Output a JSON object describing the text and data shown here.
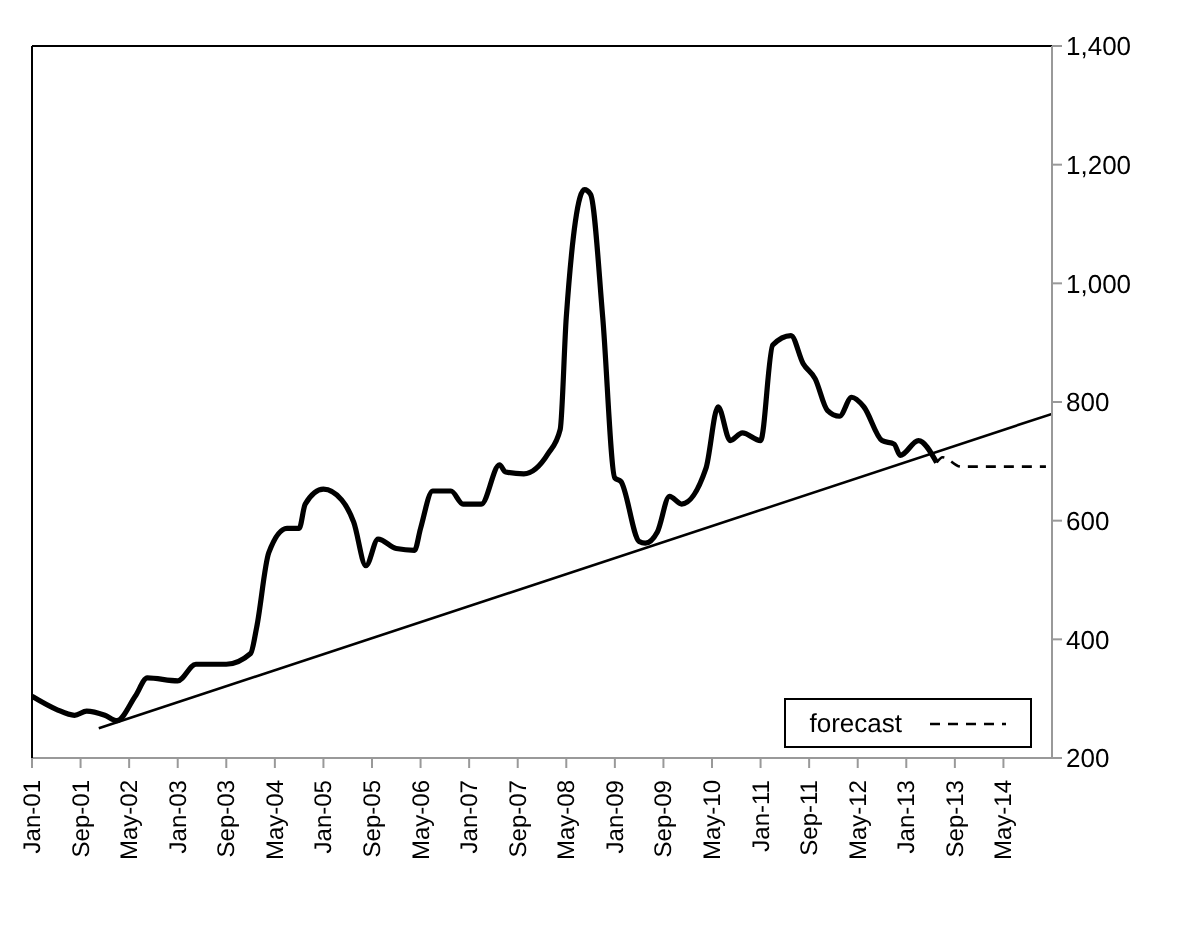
{
  "chart_data": {
    "type": "line",
    "xlim": [
      "2001-01",
      "2015-01"
    ],
    "xticks": [
      {
        "value": "2001-01",
        "label": "Jan-01"
      },
      {
        "value": "2001-09",
        "label": "Sep-01"
      },
      {
        "value": "2002-05",
        "label": "May-02"
      },
      {
        "value": "2003-01",
        "label": "Jan-03"
      },
      {
        "value": "2003-09",
        "label": "Sep-03"
      },
      {
        "value": "2004-05",
        "label": "May-04"
      },
      {
        "value": "2005-01",
        "label": "Jan-05"
      },
      {
        "value": "2005-09",
        "label": "Sep-05"
      },
      {
        "value": "2006-05",
        "label": "May-06"
      },
      {
        "value": "2007-01",
        "label": "Jan-07"
      },
      {
        "value": "2007-09",
        "label": "Sep-07"
      },
      {
        "value": "2008-05",
        "label": "May-08"
      },
      {
        "value": "2009-01",
        "label": "Jan-09"
      },
      {
        "value": "2009-09",
        "label": "Sep-09"
      },
      {
        "value": "2010-05",
        "label": "May-10"
      },
      {
        "value": "2011-01",
        "label": "Jan-11"
      },
      {
        "value": "2011-09",
        "label": "Sep-11"
      },
      {
        "value": "2012-05",
        "label": "May-12"
      },
      {
        "value": "2013-01",
        "label": "Jan-13"
      },
      {
        "value": "2013-09",
        "label": "Sep-13"
      },
      {
        "value": "2014-05",
        "label": "May-14"
      }
    ],
    "ylim": [
      200,
      1400
    ],
    "yticks": [
      200,
      400,
      600,
      800,
      {
        "value": 1000,
        "label": "1,000"
      },
      {
        "value": 1200,
        "label": "1,200"
      },
      {
        "value": 1400,
        "label": "1,400"
      }
    ],
    "legend": "bottom right",
    "marker": "none",
    "series": [
      {
        "color": "#000000",
        "line_style": "solid",
        "x": [
          "2001-01",
          "2001-05",
          "2001-08",
          "2001-10",
          "2002-01",
          "2002-03",
          "2002-06",
          "2002-08",
          "2003-01",
          "2003-04",
          "2003-09",
          "2004-01",
          "2004-02",
          "2004-04",
          "2004-07",
          "2004-09",
          "2004-10",
          "2005-01",
          "2005-04",
          "2005-06",
          "2005-08",
          "2005-10",
          "2006-01",
          "2006-04",
          "2006-05",
          "2006-07",
          "2006-10",
          "2006-12",
          "2007-03",
          "2007-06",
          "2007-07",
          "2007-10",
          "2008-02",
          "2008-04",
          "2008-05",
          "2008-08",
          "2008-09",
          "2008-11",
          "2009-01",
          "2009-02",
          "2009-05",
          "2009-06",
          "2009-08",
          "2009-10",
          "2009-12",
          "2010-04",
          "2010-06",
          "2010-08",
          "2010-10",
          "2011-01",
          "2011-03",
          "2011-06",
          "2011-08",
          "2011-10",
          "2011-12",
          "2012-02",
          "2012-04",
          "2012-06",
          "2012-09",
          "2012-11",
          "2012-12",
          "2013-03",
          "2013-06"
        ],
        "values": [
          304,
          282,
          272,
          279,
          272,
          263,
          304,
          335,
          330,
          358,
          358,
          376,
          420,
          546,
          587,
          587,
          628,
          653,
          635,
          597,
          524,
          569,
          553,
          550,
          587,
          650,
          650,
          628,
          628,
          694,
          682,
          679,
          713,
          754,
          943,
          1158,
          1150,
          943,
          672,
          666,
          565,
          562,
          581,
          641,
          628,
          688,
          792,
          735,
          748,
          735,
          896,
          912,
          865,
          839,
          786,
          776,
          808,
          792,
          735,
          729,
          710,
          735,
          698
        ]
      },
      {
        "name": "forecast",
        "color": "#000000",
        "line_style": "dashed",
        "x": [
          "2013-06",
          "2013-07",
          "2013-10",
          "2014-12"
        ],
        "values": [
          698,
          707,
          691,
          691
        ]
      },
      {
        "type": "line",
        "color": "#000000",
        "line_style": "solid",
        "x": [
          "2001-12",
          "2015-01"
        ],
        "values": [
          250,
          780
        ]
      }
    ]
  }
}
